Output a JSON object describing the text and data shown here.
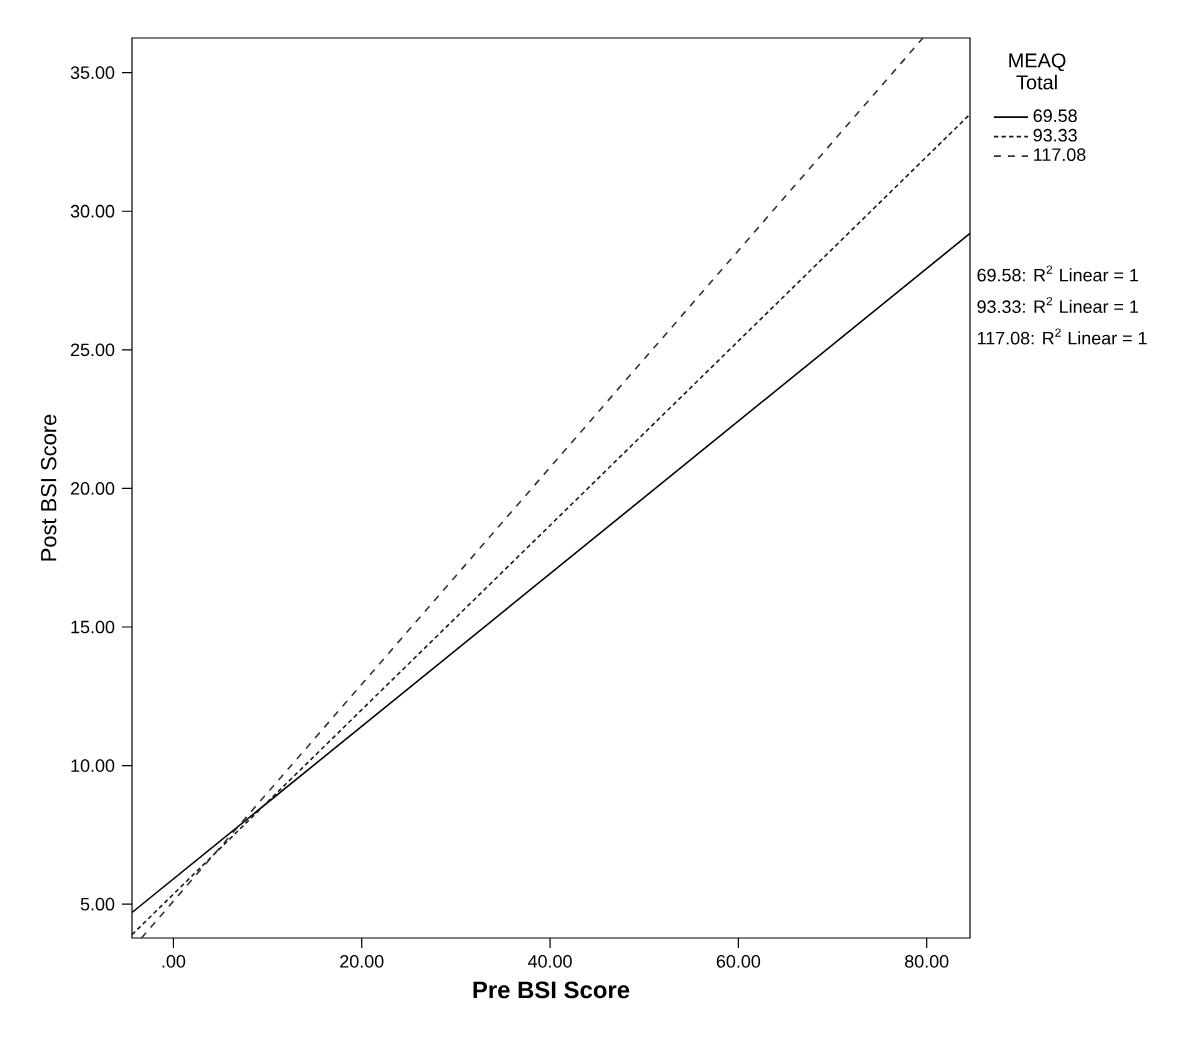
{
  "chart_data": {
    "type": "line",
    "xlabel": "Pre BSI Score",
    "ylabel": "Post BSI Score",
    "legend_title": "MEAQ Total",
    "legend": "top right",
    "xlim": [
      -4.4,
      84.6
    ],
    "ylim": [
      3.78,
      36.25
    ],
    "xticks": [
      {
        "value": 0,
        "label": ".00"
      },
      {
        "value": 20,
        "label": "20.00"
      },
      {
        "value": 40,
        "label": "40.00"
      },
      {
        "value": 60,
        "label": "60.00"
      },
      {
        "value": 80,
        "label": "80.00"
      }
    ],
    "yticks": [
      {
        "value": 5,
        "label": "5.00"
      },
      {
        "value": 10,
        "label": "10.00"
      },
      {
        "value": 15,
        "label": "15.00"
      },
      {
        "value": 20,
        "label": "20.00"
      },
      {
        "value": 25,
        "label": "25.00"
      },
      {
        "value": 30,
        "label": "30.00"
      },
      {
        "value": 35,
        "label": "35.00"
      }
    ],
    "series": [
      {
        "name": "69.58",
        "color": "#000000",
        "line_style": "solid",
        "x": [
          -4.4,
          84.6
        ],
        "values": [
          4.7,
          29.2
        ]
      },
      {
        "name": "93.33",
        "color": "#1a1a1a",
        "line_style": "dotted",
        "x": [
          -4.4,
          84.6
        ],
        "values": [
          3.9,
          33.5
        ]
      },
      {
        "name": "117.08",
        "color": "#333333",
        "line_style": "dashed",
        "x": [
          -3.4,
          79.6
        ],
        "values": [
          3.78,
          36.25
        ]
      }
    ],
    "annotations": [
      "69.58: R$^{2}$ Linear = 1",
      "93.33: R$^{2}$ Linear = 1",
      "117.08: R$^{2}$ Linear = 1"
    ]
  }
}
